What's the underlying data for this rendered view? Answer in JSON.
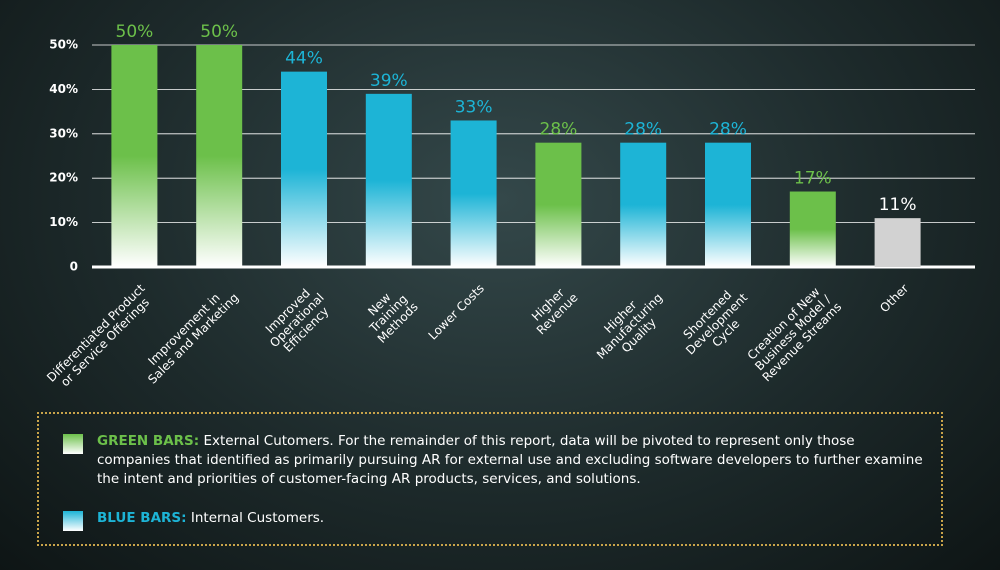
{
  "chart_data": {
    "type": "bar",
    "categories": [
      "Differentiated Product\nor Service Offerings",
      "Improvement in\nSales and Marketing",
      "Improved\nOperational\nEfficiency",
      "New\nTraining\nMethods",
      "Lower Costs",
      "Higher\nRevenue",
      "Higher\nManufacturing\nQuality",
      "Shortened\nDevelopment\nCycle",
      "Creation of New\nBusiness Model /\nRevenue Streams",
      "Other"
    ],
    "values": [
      50,
      50,
      44,
      39,
      33,
      28,
      28,
      28,
      17,
      11
    ],
    "value_labels": [
      "50%",
      "50%",
      "44%",
      "39%",
      "33%",
      "28%",
      "28%",
      "28%",
      "17%",
      "11%"
    ],
    "colors": [
      "#6cc04a",
      "#6cc04a",
      "#1db4d6",
      "#1db4d6",
      "#1db4d6",
      "#6cc04a",
      "#1db4d6",
      "#1db4d6",
      "#6cc04a",
      "#d2d2d2"
    ],
    "ylim": [
      0,
      50
    ],
    "yticks": [
      0,
      {
        "value": 10,
        "label": "10%"
      },
      {
        "value": 20,
        "label": "20%"
      },
      {
        "value": 30,
        "label": "30%"
      },
      {
        "value": 40,
        "label": "40%"
      },
      {
        "value": 50,
        "label": "50%"
      }
    ],
    "grid": true,
    "legend": [
      {
        "label": "GREEN BARS:",
        "text": "External Cutomers. For the remainder of this report, data will be pivoted to represent only those companies that identified as primarily pursuing AR for external use and excluding software developers to further examine the intent and priorities of customer-facing AR products, services, and solutions.",
        "color": "#6cc04a"
      },
      {
        "label": "BLUE BARS:",
        "text": "Internal Customers.",
        "color": "#1db4d6"
      }
    ]
  }
}
